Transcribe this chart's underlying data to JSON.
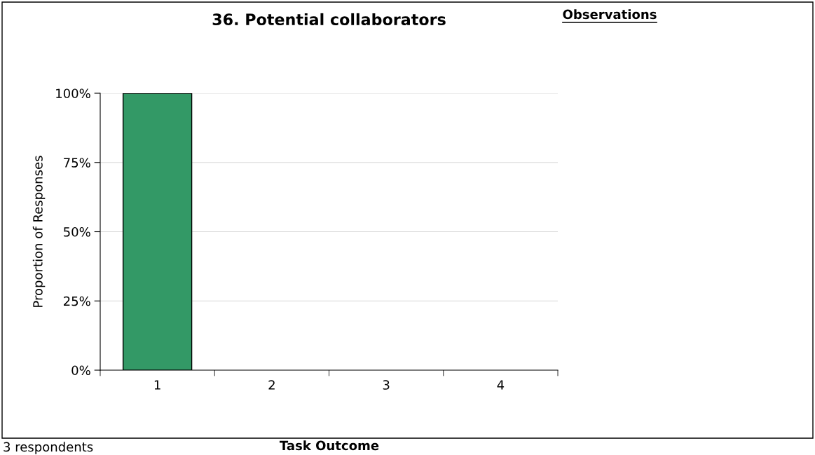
{
  "chart_data": {
    "type": "bar",
    "title": "36. Potential collaborators",
    "xlabel": "Task Outcome",
    "ylabel": "Proportion of Responses",
    "categories": [
      "1",
      "2",
      "3",
      "4"
    ],
    "values": [
      100,
      0,
      0,
      0
    ],
    "color": "#339966",
    "ylim": [
      0,
      100
    ],
    "yticks": [
      {
        "value": 0,
        "label": "0%"
      },
      {
        "value": 25,
        "label": "25%"
      },
      {
        "value": 50,
        "label": "50%"
      },
      {
        "value": 75,
        "label": "75%"
      },
      {
        "value": 100,
        "label": "100%"
      }
    ],
    "grid": "y",
    "legend": false,
    "annotations": [
      "Observations",
      "3 respondents"
    ]
  }
}
